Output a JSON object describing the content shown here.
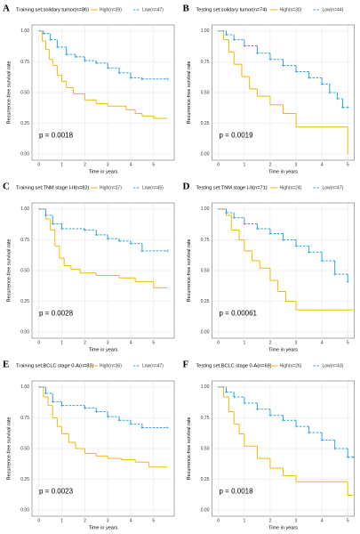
{
  "chart_data": [
    {
      "type": "step",
      "letter": "A",
      "title": "Training set:solidary tumor(n=86)",
      "xlabel": "Time in years",
      "ylabel": "Recurrence-free survival rate",
      "annotation": "p = 0.0018",
      "xlim": [
        -0.3,
        5.9
      ],
      "xticks": [
        0,
        1,
        2,
        3,
        4,
        5
      ],
      "ylim": [
        -0.05,
        1.05
      ],
      "yticks": [
        {
          "value": 0,
          "label": "0.00"
        },
        {
          "value": 0.25,
          "label": "0.25"
        },
        {
          "value": 0.5,
          "label": "0.50"
        },
        {
          "value": 0.75,
          "label": "0.75"
        },
        {
          "value": 1,
          "label": "1.00"
        }
      ],
      "grid": true,
      "series": [
        {
          "name": "High(n=39)",
          "color": "#f2b705",
          "style": "solid",
          "x": [
            0,
            0.15,
            0.3,
            0.45,
            0.6,
            0.8,
            1.0,
            1.2,
            1.5,
            2.0,
            2.5,
            3.0,
            3.8,
            4.2,
            4.5,
            5.0,
            5.6
          ],
          "values": [
            1,
            0.92,
            0.85,
            0.77,
            0.72,
            0.64,
            0.59,
            0.54,
            0.49,
            0.44,
            0.41,
            0.39,
            0.36,
            0.33,
            0.31,
            0.29,
            0.29
          ]
        },
        {
          "name": "Low(n=47)",
          "color": "#2ba3dc",
          "style": "dashed",
          "x": [
            0,
            0.2,
            0.5,
            0.8,
            1.2,
            1.6,
            2.0,
            2.5,
            3.0,
            3.5,
            4.0,
            4.5,
            5.6
          ],
          "values": [
            1,
            0.98,
            0.93,
            0.87,
            0.81,
            0.79,
            0.76,
            0.74,
            0.7,
            0.66,
            0.62,
            0.61,
            0.61
          ]
        }
      ]
    },
    {
      "type": "step",
      "letter": "B",
      "title": "Testing set:solidary tumor(n=74)",
      "xlabel": "Time in years",
      "ylabel": "Recurrence-free survival rate",
      "annotation": "p = 0.0019",
      "xlim": [
        -0.25,
        5.25
      ],
      "xticks": [
        0,
        1,
        2,
        3,
        4,
        5
      ],
      "ylim": [
        -0.05,
        1.05
      ],
      "yticks": [
        {
          "value": 0,
          "label": "0.00"
        },
        {
          "value": 0.25,
          "label": "0.25"
        },
        {
          "value": 0.5,
          "label": "0.50"
        },
        {
          "value": 0.75,
          "label": "0.75"
        },
        {
          "value": 1,
          "label": "1.00"
        }
      ],
      "grid": true,
      "series": [
        {
          "name": "High(n=30)",
          "color": "#f2b705",
          "style": "solid",
          "x": [
            0,
            0.2,
            0.4,
            0.6,
            0.9,
            1.2,
            1.5,
            2.0,
            2.5,
            3.0,
            4.0,
            4.9,
            5.0
          ],
          "values": [
            1,
            0.93,
            0.83,
            0.73,
            0.63,
            0.53,
            0.47,
            0.4,
            0.33,
            0.22,
            0.22,
            0.22,
            0
          ]
        },
        {
          "name": "Low(n=44)",
          "color": "#2ba3dc",
          "style": "dashed",
          "x": [
            0,
            0.3,
            0.6,
            1.0,
            1.5,
            2.0,
            2.5,
            3.0,
            3.5,
            4.0,
            4.3,
            4.6,
            4.8,
            5.0
          ],
          "values": [
            1,
            0.97,
            0.93,
            0.88,
            0.82,
            0.77,
            0.72,
            0.67,
            0.62,
            0.57,
            0.5,
            0.45,
            0.38,
            0.38
          ]
        }
      ]
    },
    {
      "type": "step",
      "letter": "C",
      "title": "Training set:TNM stage I-II(n=82)",
      "xlabel": "Time in years",
      "ylabel": "Recurrence-free survival rate",
      "annotation": "p = 0.0028",
      "xlim": [
        -0.3,
        5.9
      ],
      "xticks": [
        0,
        1,
        2,
        3,
        4,
        5
      ],
      "ylim": [
        -0.05,
        1.05
      ],
      "yticks": [
        {
          "value": 0,
          "label": "0.00"
        },
        {
          "value": 0.25,
          "label": "0.25"
        },
        {
          "value": 0.5,
          "label": "0.50"
        },
        {
          "value": 0.75,
          "label": "0.75"
        },
        {
          "value": 1,
          "label": "1.00"
        }
      ],
      "grid": true,
      "series": [
        {
          "name": "High(n=37)",
          "color": "#f2b705",
          "style": "solid",
          "x": [
            0,
            0.3,
            0.5,
            0.7,
            0.9,
            1.1,
            1.4,
            1.8,
            2.5,
            3.5,
            4.2,
            5.0,
            5.6
          ],
          "values": [
            1,
            0.92,
            0.83,
            0.7,
            0.6,
            0.54,
            0.51,
            0.48,
            0.46,
            0.44,
            0.41,
            0.36,
            0.36
          ]
        },
        {
          "name": "Low(n=45)",
          "color": "#2ba3dc",
          "style": "dashed",
          "x": [
            0,
            0.3,
            0.6,
            1.0,
            2.0,
            2.5,
            3.0,
            3.5,
            4.0,
            4.5,
            5.6
          ],
          "values": [
            1,
            0.95,
            0.88,
            0.84,
            0.83,
            0.79,
            0.76,
            0.74,
            0.72,
            0.66,
            0.66
          ]
        }
      ]
    },
    {
      "type": "step",
      "letter": "D",
      "title": "Testing set:TNM stage I-II(n=71)",
      "xlabel": "Time in years",
      "ylabel": "Recurrence-free survival rate",
      "annotation": "p = 0.00061",
      "xlim": [
        -0.25,
        5.25
      ],
      "xticks": [
        0,
        1,
        2,
        3,
        4,
        5
      ],
      "ylim": [
        -0.05,
        1.05
      ],
      "yticks": [
        {
          "value": 0,
          "label": "0.00"
        },
        {
          "value": 0.25,
          "label": "0.25"
        },
        {
          "value": 0.5,
          "label": "0.50"
        },
        {
          "value": 0.75,
          "label": "0.75"
        },
        {
          "value": 1,
          "label": "1.00"
        }
      ],
      "grid": true,
      "series": [
        {
          "name": "High(n=24)",
          "color": "#f2b705",
          "style": "solid",
          "x": [
            0,
            0.3,
            0.5,
            0.8,
            1.0,
            1.3,
            1.6,
            2.0,
            2.3,
            2.6,
            3.0,
            4.0,
            5.2
          ],
          "values": [
            1,
            0.95,
            0.83,
            0.75,
            0.66,
            0.58,
            0.52,
            0.42,
            0.33,
            0.25,
            0.18,
            0.18,
            0.18
          ]
        },
        {
          "name": "Low(n=47)",
          "color": "#2ba3dc",
          "style": "dashed",
          "x": [
            0,
            0.3,
            0.6,
            1.0,
            1.5,
            2.0,
            2.5,
            3.0,
            3.5,
            4.0,
            4.5,
            5.0
          ],
          "values": [
            1,
            0.97,
            0.93,
            0.88,
            0.84,
            0.8,
            0.75,
            0.7,
            0.65,
            0.58,
            0.47,
            0.41
          ]
        }
      ]
    },
    {
      "type": "step",
      "letter": "E",
      "title": "Training set:BCLC stage 0-A(n=83)",
      "xlabel": "Time in years",
      "ylabel": "Recurrence-free survival rate",
      "annotation": "p = 0.0023",
      "xlim": [
        -0.3,
        5.9
      ],
      "xticks": [
        0,
        1,
        2,
        3,
        4,
        5
      ],
      "ylim": [
        -0.05,
        1.05
      ],
      "yticks": [
        {
          "value": 0,
          "label": "0.00"
        },
        {
          "value": 0.25,
          "label": "0.25"
        },
        {
          "value": 0.5,
          "label": "0.50"
        },
        {
          "value": 0.75,
          "label": "0.75"
        },
        {
          "value": 1,
          "label": "1.00"
        }
      ],
      "grid": true,
      "series": [
        {
          "name": "High(n=36)",
          "color": "#f2b705",
          "style": "solid",
          "x": [
            0,
            0.2,
            0.4,
            0.6,
            0.8,
            1.0,
            1.3,
            1.6,
            2.0,
            2.5,
            3.0,
            3.6,
            4.2,
            4.8,
            5.6
          ],
          "values": [
            1,
            0.92,
            0.85,
            0.75,
            0.68,
            0.62,
            0.55,
            0.5,
            0.46,
            0.44,
            0.42,
            0.41,
            0.39,
            0.35,
            0.35
          ]
        },
        {
          "name": "Low(n=47)",
          "color": "#2ba3dc",
          "style": "dashed",
          "x": [
            0,
            0.3,
            0.6,
            1.0,
            2.0,
            2.5,
            3.0,
            3.5,
            4.0,
            4.5,
            5.6
          ],
          "values": [
            1,
            0.95,
            0.88,
            0.85,
            0.83,
            0.8,
            0.76,
            0.73,
            0.7,
            0.67,
            0.67
          ]
        }
      ]
    },
    {
      "type": "step",
      "letter": "F",
      "title": "Testing set:BCLC stage 0-A(n=69)",
      "xlabel": "Time in years",
      "ylabel": "Recurrence-free survival rate",
      "annotation": "p = 0.0018",
      "xlim": [
        -0.25,
        5.25
      ],
      "xticks": [
        0,
        1,
        2,
        3,
        4,
        5
      ],
      "ylim": [
        -0.05,
        1.05
      ],
      "yticks": [
        {
          "value": 0,
          "label": "0.00"
        },
        {
          "value": 0.25,
          "label": "0.25"
        },
        {
          "value": 0.5,
          "label": "0.50"
        },
        {
          "value": 0.75,
          "label": "0.75"
        },
        {
          "value": 1,
          "label": "1.00"
        }
      ],
      "grid": true,
      "series": [
        {
          "name": "High(n=26)",
          "color": "#f2b705",
          "style": "solid",
          "x": [
            0,
            0.2,
            0.4,
            0.6,
            0.8,
            1.0,
            1.5,
            2.0,
            2.5,
            3.0,
            4.0,
            5.0,
            5.2
          ],
          "values": [
            1,
            0.92,
            0.8,
            0.7,
            0.62,
            0.52,
            0.42,
            0.34,
            0.28,
            0.23,
            0.23,
            0.12,
            0.12
          ]
        },
        {
          "name": "Low(n=43)",
          "color": "#2ba3dc",
          "style": "dashed",
          "x": [
            0,
            0.3,
            0.6,
            1.0,
            1.5,
            2.0,
            2.5,
            3.0,
            3.5,
            4.0,
            4.5,
            5.0,
            5.2
          ],
          "values": [
            1,
            0.96,
            0.92,
            0.87,
            0.82,
            0.77,
            0.73,
            0.68,
            0.63,
            0.57,
            0.5,
            0.43,
            0.43
          ]
        }
      ]
    }
  ]
}
